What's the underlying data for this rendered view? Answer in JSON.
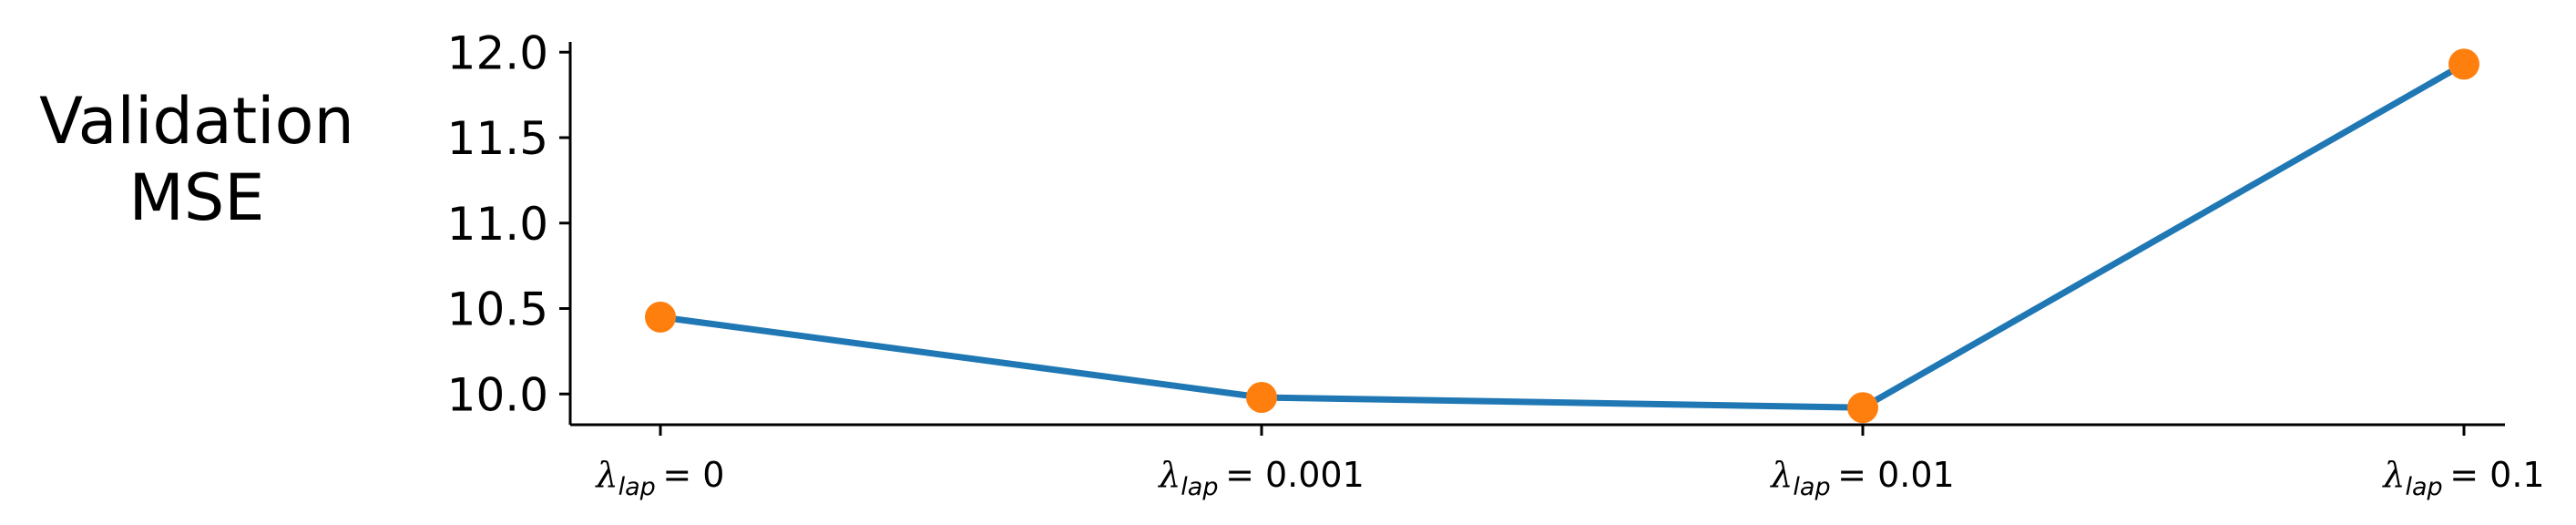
{
  "chart_data": {
    "type": "line",
    "categories": [
      {
        "symbol": "λ",
        "subscript": "lap",
        "eq": "= ",
        "value": "0"
      },
      {
        "symbol": "λ",
        "subscript": "lap",
        "eq": "= ",
        "value": "0.001"
      },
      {
        "symbol": "λ",
        "subscript": "lap",
        "eq": "= ",
        "value": "0.01"
      },
      {
        "symbol": "λ",
        "subscript": "lap",
        "eq": "= ",
        "value": "0.1"
      }
    ],
    "series": [
      {
        "values": [
          10.45,
          9.98,
          9.92,
          11.93
        ]
      }
    ],
    "ylabel_lines": [
      "Validation",
      "MSE"
    ],
    "ylim": [
      9.82,
      12.06
    ],
    "yticks": [
      "10.0",
      "10.5",
      "11.0",
      "11.5",
      "12.0"
    ],
    "grid": false,
    "colors": {
      "line": "#1f77b4",
      "marker": "#ff7f0e",
      "axis": "#000000"
    }
  }
}
